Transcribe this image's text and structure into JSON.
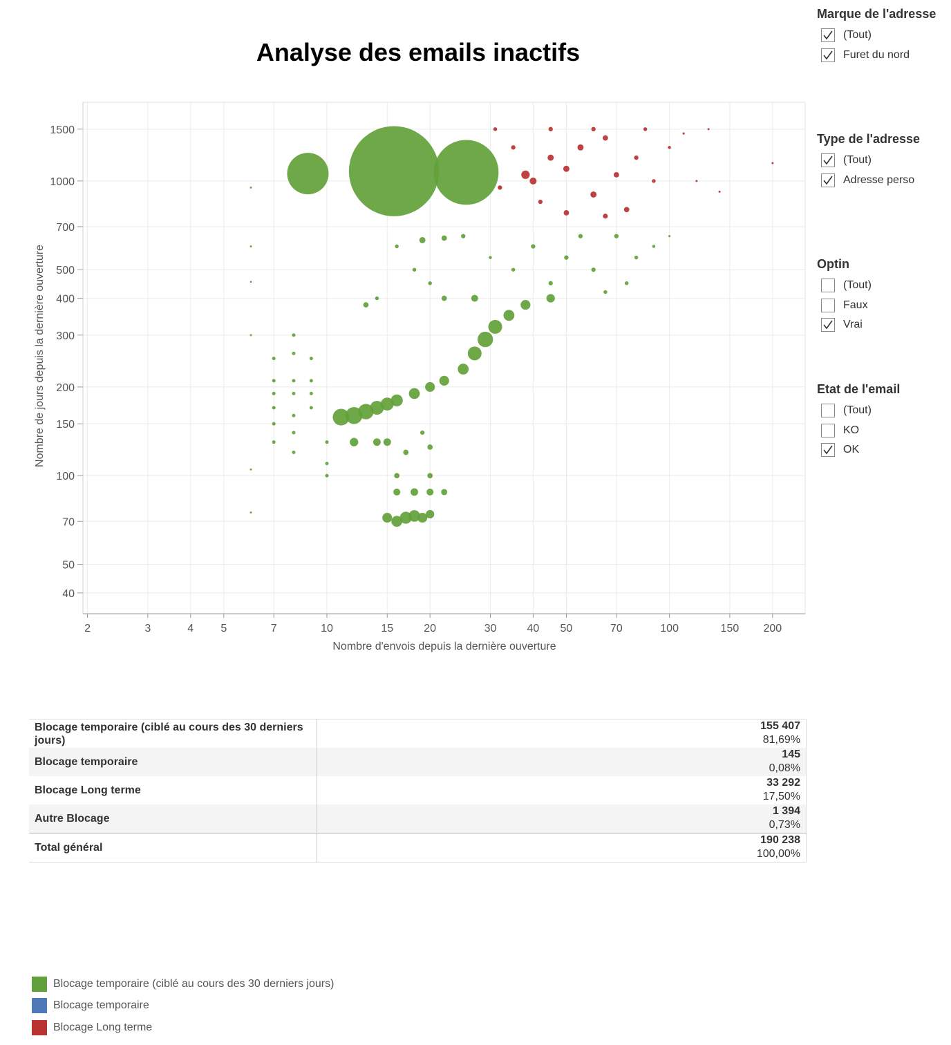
{
  "chart_data": {
    "type": "scatter",
    "title": "Analyse des emails inactifs",
    "x_label": "Nombre d'envois depuis la dernière ouverture",
    "y_label": "Nombre de jours depuis la dernière ouverture",
    "log_x": true,
    "log_y": true,
    "grid": true,
    "xlim": [
      1.94,
      249
    ],
    "ylim": [
      34,
      1850
    ],
    "xticks": [
      2,
      3,
      4,
      5,
      7,
      10,
      15,
      20,
      30,
      40,
      50,
      70,
      100,
      150,
      200
    ],
    "yticks": [
      40,
      50,
      70,
      100,
      150,
      200,
      300,
      400,
      500,
      700,
      1000,
      1500
    ],
    "series": [
      {
        "name": "Blocage temporaire (ciblé au cours des 30 derniers jours)",
        "color": "#62a13a",
        "x": [
          8.8,
          15.7,
          25.5,
          11,
          12,
          13,
          14,
          15,
          16,
          18,
          20,
          22,
          25,
          27,
          29,
          31,
          34,
          38,
          45,
          7,
          7,
          7,
          7,
          7,
          7,
          8,
          8,
          8,
          8,
          8,
          8,
          8,
          9,
          9,
          9,
          9,
          10,
          10,
          10,
          15,
          16,
          17,
          18,
          19,
          20,
          16,
          18,
          20,
          22,
          16,
          20,
          12,
          14,
          15,
          17,
          20,
          19,
          40,
          50,
          60,
          70,
          45,
          80,
          90,
          100,
          55,
          65,
          75,
          35,
          30,
          25,
          22,
          19,
          27,
          22,
          20,
          18,
          16,
          14,
          13,
          6,
          6,
          6,
          6,
          6
        ],
        "values": [
          1060,
          1080,
          1070,
          158,
          160,
          165,
          170,
          175,
          180,
          190,
          200,
          210,
          230,
          260,
          290,
          320,
          350,
          380,
          400,
          130,
          150,
          170,
          190,
          210,
          250,
          120,
          140,
          160,
          190,
          210,
          260,
          300,
          170,
          190,
          210,
          250,
          100,
          110,
          130,
          72,
          70,
          72,
          73,
          72,
          74,
          88,
          88,
          88,
          88,
          100,
          100,
          130,
          130,
          130,
          120,
          125,
          140,
          600,
          550,
          500,
          650,
          450,
          550,
          600,
          650,
          650,
          420,
          450,
          500,
          550,
          650,
          640,
          630,
          400,
          400,
          450,
          500,
          600,
          400,
          380,
          105,
          300,
          600,
          950,
          75
        ],
        "sizes": [
          3600,
          17000,
          8800,
          580,
          600,
          500,
          400,
          350,
          300,
          250,
          200,
          200,
          250,
          400,
          500,
          400,
          250,
          200,
          150,
          25,
          25,
          25,
          25,
          25,
          25,
          25,
          25,
          25,
          25,
          25,
          25,
          25,
          25,
          25,
          25,
          25,
          25,
          25,
          25,
          200,
          250,
          300,
          280,
          200,
          150,
          100,
          120,
          100,
          80,
          60,
          60,
          150,
          120,
          120,
          60,
          60,
          40,
          40,
          40,
          40,
          40,
          40,
          30,
          20,
          10,
          40,
          30,
          30,
          30,
          20,
          40,
          60,
          80,
          100,
          60,
          30,
          30,
          30,
          30,
          60,
          9,
          9,
          9,
          9,
          9
        ]
      },
      {
        "name": "Blocage temporaire",
        "color": "#4e79b7",
        "x": [
          6
        ],
        "values": [
          455
        ],
        "sizes": [
          4
        ]
      },
      {
        "name": "Blocage Long terme",
        "color": "#b83232",
        "x": [
          40,
          45,
          50,
          55,
          60,
          65,
          70,
          75,
          80,
          90,
          100,
          110,
          35,
          32,
          31,
          45,
          60,
          85,
          120,
          130,
          200,
          140,
          38,
          50,
          65,
          42
        ],
        "values": [
          1000,
          1200,
          1100,
          1300,
          900,
          1400,
          1050,
          800,
          1200,
          1000,
          1300,
          1450,
          1300,
          950,
          1500,
          1500,
          1500,
          1500,
          1000,
          1500,
          1150,
          920,
          1050,
          780,
          760,
          850
        ],
        "sizes": [
          100,
          80,
          80,
          80,
          80,
          60,
          60,
          60,
          40,
          30,
          20,
          10,
          40,
          40,
          30,
          40,
          40,
          30,
          9,
          9,
          9,
          9,
          150,
          60,
          50,
          40
        ]
      }
    ]
  },
  "filters": [
    {
      "title": "Marque de l'adresse",
      "items": [
        {
          "label": "(Tout)",
          "checked": true
        },
        {
          "label": "Furet du nord",
          "checked": true
        }
      ]
    },
    {
      "title": "Type de l'adresse",
      "items": [
        {
          "label": "(Tout)",
          "checked": true
        },
        {
          "label": "Adresse perso",
          "checked": true
        }
      ]
    },
    {
      "title": "Optin",
      "items": [
        {
          "label": "(Tout)",
          "checked": false
        },
        {
          "label": "Faux",
          "checked": false
        },
        {
          "label": "Vrai",
          "checked": true
        }
      ]
    },
    {
      "title": "Etat de l'email",
      "items": [
        {
          "label": "(Tout)",
          "checked": false
        },
        {
          "label": "KO",
          "checked": false
        },
        {
          "label": "OK",
          "checked": true
        }
      ]
    }
  ],
  "table": {
    "rows": [
      [
        "Blocage temporaire (ciblé au cours des 30 derniers jours)",
        "155 407",
        "81,69%"
      ],
      [
        "Blocage temporaire",
        "145",
        "0,08%"
      ],
      [
        "Blocage Long terme",
        "33 292",
        "17,50%"
      ],
      [
        "Autre Blocage",
        "1 394",
        "0,73%"
      ],
      [
        "Total général",
        "190 238",
        "100,00%"
      ]
    ]
  }
}
